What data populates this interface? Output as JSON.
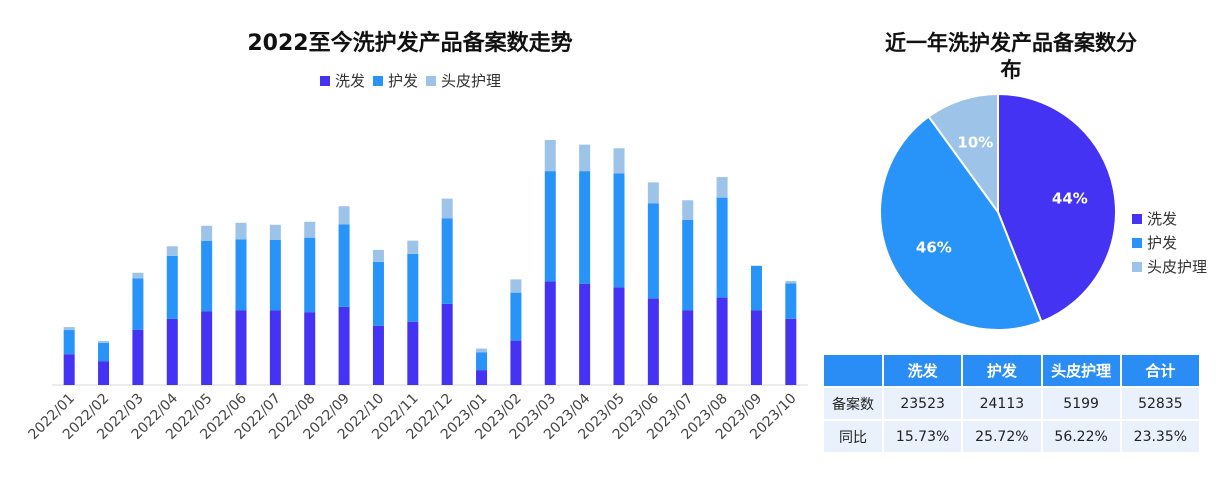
{
  "chart_data": [
    {
      "type": "bar",
      "stacked": true,
      "title": "2022至今洗护发产品备案数走势",
      "legend": "top",
      "grid": false,
      "categories": [
        "2022/01",
        "2022/02",
        "2022/03",
        "2022/04",
        "2022/05",
        "2022/06",
        "2022/07",
        "2022/08",
        "2022/09",
        "2022/10",
        "2022/11",
        "2022/12",
        "2023/01",
        "2023/02",
        "2023/03",
        "2023/04",
        "2023/05",
        "2023/06",
        "2023/07",
        "2023/08",
        "2023/09",
        "2023/10"
      ],
      "series": [
        {
          "name": "洗发",
          "color": "#4433f2",
          "values": [
            465,
            360,
            835,
            1000,
            1115,
            1130,
            1130,
            1100,
            1180,
            895,
            955,
            1225,
            225,
            670,
            1565,
            1530,
            1475,
            1305,
            1130,
            1320,
            1130,
            1000
          ]
        },
        {
          "name": "护发",
          "color": "#2893f8",
          "values": [
            365,
            275,
            775,
            950,
            1060,
            1070,
            1060,
            1125,
            1245,
            965,
            1025,
            1290,
            270,
            725,
            1665,
            1700,
            1720,
            1440,
            1365,
            1510,
            670,
            535
          ]
        },
        {
          "name": "头皮护理",
          "color": "#9dc3e8",
          "values": [
            45,
            30,
            85,
            145,
            230,
            250,
            230,
            240,
            275,
            180,
            200,
            300,
            55,
            200,
            470,
            400,
            380,
            315,
            295,
            310,
            0,
            35
          ]
        }
      ]
    },
    {
      "type": "pie",
      "title": "近一年洗护发产品备案数分布",
      "legend": "right",
      "slices": [
        {
          "name": "洗发",
          "value": 44,
          "label": "44%",
          "color": "#4433f2"
        },
        {
          "name": "护发",
          "value": 46,
          "label": "46%",
          "color": "#2893f8"
        },
        {
          "name": "头皮护理",
          "value": 10,
          "label": "10%",
          "color": "#9dc3e8"
        }
      ]
    }
  ],
  "table": {
    "headers": [
      "",
      "洗发",
      "护发",
      "头皮护理",
      "合计"
    ],
    "rows": [
      {
        "label": "备案数",
        "cells": [
          "23523",
          "24113",
          "5199",
          "52835"
        ]
      },
      {
        "label": "同比",
        "cells": [
          "15.73%",
          "25.72%",
          "56.22%",
          "23.35%"
        ]
      }
    ]
  }
}
